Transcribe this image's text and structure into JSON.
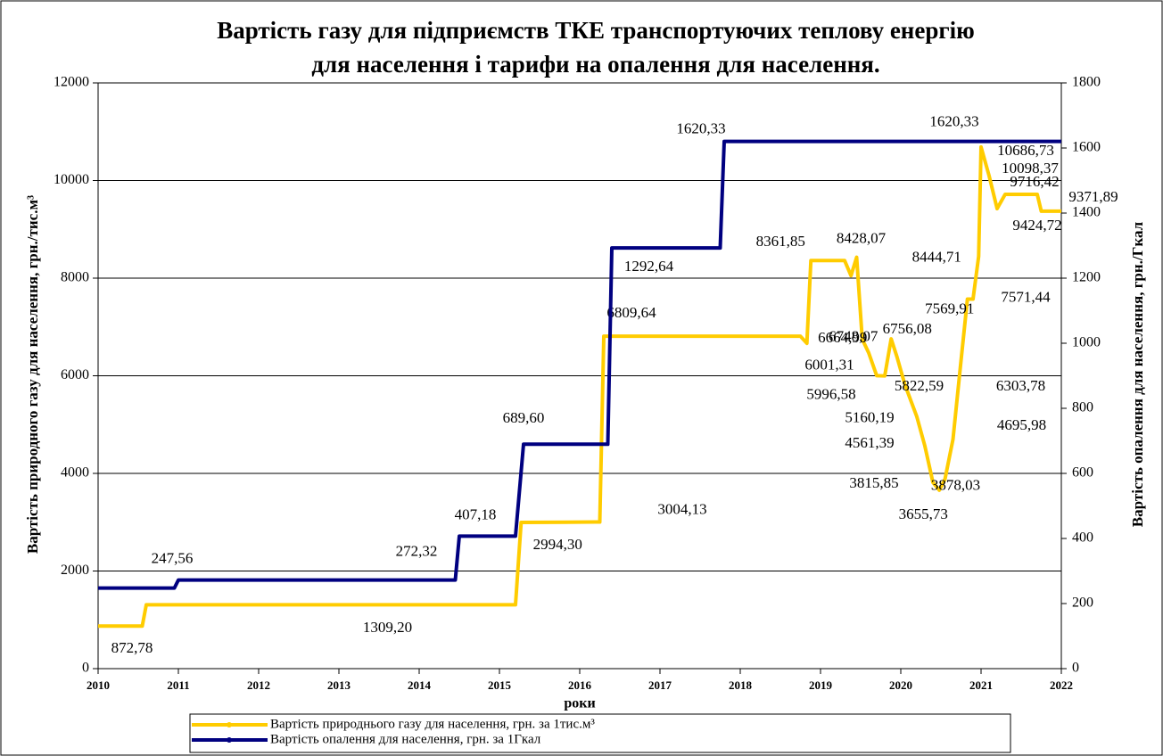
{
  "chart_data": {
    "type": "line",
    "title": [
      "Вартість газу для підприємств ТКЕ транспортуючих теплову енергію",
      "для населення і тарифи на опалення для населення."
    ],
    "x_label": "роки",
    "y_label": "Вартість природного газу для населення, грн./тис.м³",
    "y2_label": "Вартість опалення для населення, грн./Гкал",
    "xlim": [
      2010,
      2022
    ],
    "xticks": [
      2010,
      2011,
      2012,
      2013,
      2014,
      2015,
      2016,
      2017,
      2018,
      2019,
      2020,
      2021,
      2022
    ],
    "ylim": [
      0,
      12000
    ],
    "yticks": [
      0,
      2000,
      4000,
      6000,
      8000,
      10000,
      12000
    ],
    "y2lim": [
      0,
      1800
    ],
    "y2ticks": [
      0,
      200,
      400,
      600,
      800,
      1000,
      1200,
      1400,
      1600,
      1800
    ],
    "grid": true,
    "legend": "bottom",
    "series": [
      {
        "name": "Вартість природнього газу для населення, грн. за 1тис.м³",
        "color": "#ffcc00",
        "axis": "y",
        "x": [
          2010,
          2010.55,
          2010.6,
          2013.25,
          2015.2,
          2015.27,
          2016.2,
          2016.25,
          2016.3,
          2018.75,
          2018.83,
          2018.88,
          2019.3,
          2019.38,
          2019.45,
          2019.52,
          2019.6,
          2019.7,
          2019.8,
          2019.88,
          2019.95,
          2020.05,
          2020.2,
          2020.3,
          2020.4,
          2020.48,
          2020.55,
          2020.65,
          2020.75,
          2020.83,
          2020.9,
          2020.97,
          2021.0,
          2021.1,
          2021.2,
          2021.3,
          2021.7,
          2021.75,
          2022
        ],
        "values": [
          872.78,
          872.78,
          1309.2,
          1309.2,
          1309.2,
          2994.3,
          3004.13,
          3004.13,
          6809.64,
          6809.64,
          6664.99,
          8361.85,
          8361.85,
          8050,
          8428.07,
          6748.07,
          6470,
          6001.31,
          5996.58,
          6756.08,
          6400,
          5822.59,
          5160.19,
          4561.39,
          3815.85,
          3655.73,
          3878.03,
          4695.98,
          6303.78,
          7569.91,
          7571.44,
          8444.71,
          10686.73,
          10098.37,
          9424.72,
          9716.42,
          9716.42,
          9371.89,
          9371.89
        ],
        "value_labels": [
          "872,78",
          null,
          null,
          "1309,20",
          null,
          "2994,30",
          "3004,13",
          null,
          "6809,64",
          null,
          "6664,99",
          "8361,85",
          null,
          null,
          "8428,07",
          "6748,07",
          null,
          "6001,31",
          "5996,58",
          "6756,08",
          null,
          "5822,59",
          "5160,19",
          "4561,39",
          "3815,85",
          "3655,73",
          "3878,03",
          "4695,98",
          "6303,78",
          "7569,91",
          "7571,44",
          "8444,71",
          "10686,73",
          "10098,37",
          "9424,72",
          "9716,42",
          null,
          null,
          "9371,89"
        ]
      },
      {
        "name": "Вартість опалення для населення, грн. за 1Гкал",
        "color": "#000080",
        "axis": "y2",
        "x": [
          2010,
          2010.6,
          2010.95,
          2011.0,
          2014.0,
          2014.45,
          2014.5,
          2015.2,
          2015.3,
          2016.35,
          2016.4,
          2016.95,
          2017.75,
          2017.8,
          2020.5,
          2022
        ],
        "values": [
          247.56,
          247.56,
          247.56,
          272.32,
          272.32,
          272.32,
          407.18,
          407.18,
          689.6,
          689.6,
          1292.64,
          1292.64,
          1292.64,
          1620.33,
          1620.33,
          1620.33
        ],
        "value_labels": [
          null,
          "247,56",
          null,
          null,
          "272,32",
          null,
          "407,18",
          null,
          "689,60",
          null,
          null,
          "1292,64",
          null,
          "1620,33",
          "1620,33",
          null
        ]
      }
    ]
  }
}
